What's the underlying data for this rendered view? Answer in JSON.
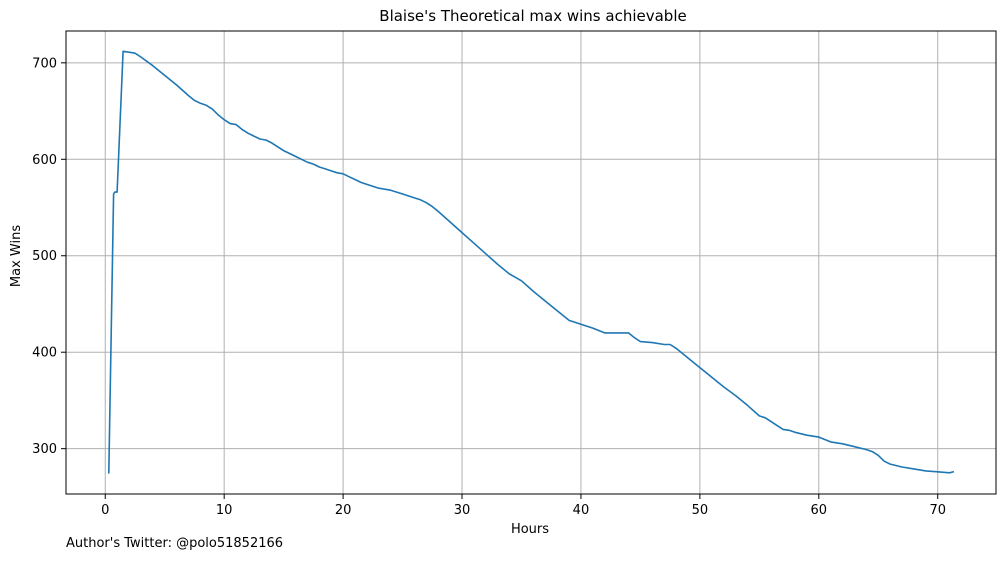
{
  "footer": {
    "note": "Author's Twitter: @polo51852166"
  },
  "colors": {
    "line": "#1f77b4",
    "grid": "#b0b0b0",
    "axis": "#000000"
  },
  "chart_data": {
    "type": "line",
    "title": "Blaise's Theoretical max wins achievable",
    "xlabel": "Hours",
    "ylabel": "Max Wins",
    "xlim": [
      -3.3,
      74.9
    ],
    "ylim": [
      253,
      733
    ],
    "xticks": [
      0,
      10,
      20,
      30,
      40,
      50,
      60,
      70
    ],
    "yticks": [
      300,
      400,
      500,
      600,
      700
    ],
    "xtick_labels": [
      "0",
      "10",
      "20",
      "30",
      "40",
      "50",
      "60",
      "70"
    ],
    "ytick_labels": [
      "300",
      "400",
      "500",
      "600",
      "700"
    ],
    "grid": true,
    "series": [
      {
        "x": [
          0.3,
          0.7,
          0.8,
          1.0,
          1.5,
          2.0,
          2.5,
          3.0,
          4.0,
          5.0,
          6.0,
          7.0,
          7.5,
          8.0,
          8.5,
          9.0,
          9.5,
          10.0,
          10.5,
          11.0,
          11.5,
          12.0,
          12.5,
          13.0,
          13.5,
          14.0,
          14.5,
          15.0,
          15.5,
          16.0,
          16.5,
          17.0,
          17.5,
          18.0,
          18.5,
          19.0,
          19.5,
          20.0,
          20.5,
          21.0,
          21.5,
          22.0,
          23.0,
          24.0,
          25.0,
          26.0,
          26.5,
          27.0,
          27.5,
          28.0,
          29.0,
          30.0,
          31.0,
          32.0,
          33.0,
          34.0,
          35.0,
          36.0,
          37.0,
          38.0,
          39.0,
          40.0,
          41.0,
          42.0,
          43.0,
          44.0,
          44.5,
          45.0,
          46.0,
          47.0,
          47.5,
          48.0,
          49.0,
          50.0,
          51.0,
          52.0,
          53.0,
          54.0,
          55.0,
          55.5,
          56.0,
          57.0,
          57.5,
          58.0,
          59.0,
          60.0,
          61.0,
          62.0,
          63.0,
          64.0,
          64.5,
          65.0,
          65.5,
          66.0,
          67.0,
          68.0,
          69.0,
          70.0,
          71.0,
          71.3
        ],
        "y": [
          275,
          564,
          566,
          566,
          712,
          711,
          710,
          706,
          697,
          687,
          677,
          666,
          661,
          658,
          656,
          652,
          646,
          641,
          637,
          636,
          631,
          627,
          624,
          621,
          620,
          617,
          613,
          609,
          606,
          603,
          600,
          597,
          595,
          592,
          590,
          588,
          586,
          585,
          582,
          579,
          576,
          574,
          570,
          568,
          564,
          560,
          558,
          555,
          551,
          546,
          535,
          524,
          513,
          502,
          491,
          481,
          474,
          463,
          453,
          443,
          433,
          429,
          425,
          420,
          420,
          420,
          415,
          411,
          410,
          408,
          408,
          404,
          394,
          384,
          374,
          364,
          355,
          345,
          334,
          332,
          328,
          320,
          319,
          317,
          314,
          312,
          307,
          305,
          302,
          299,
          297,
          293,
          287,
          284,
          281,
          279,
          277,
          276,
          275,
          276
        ]
      }
    ]
  }
}
